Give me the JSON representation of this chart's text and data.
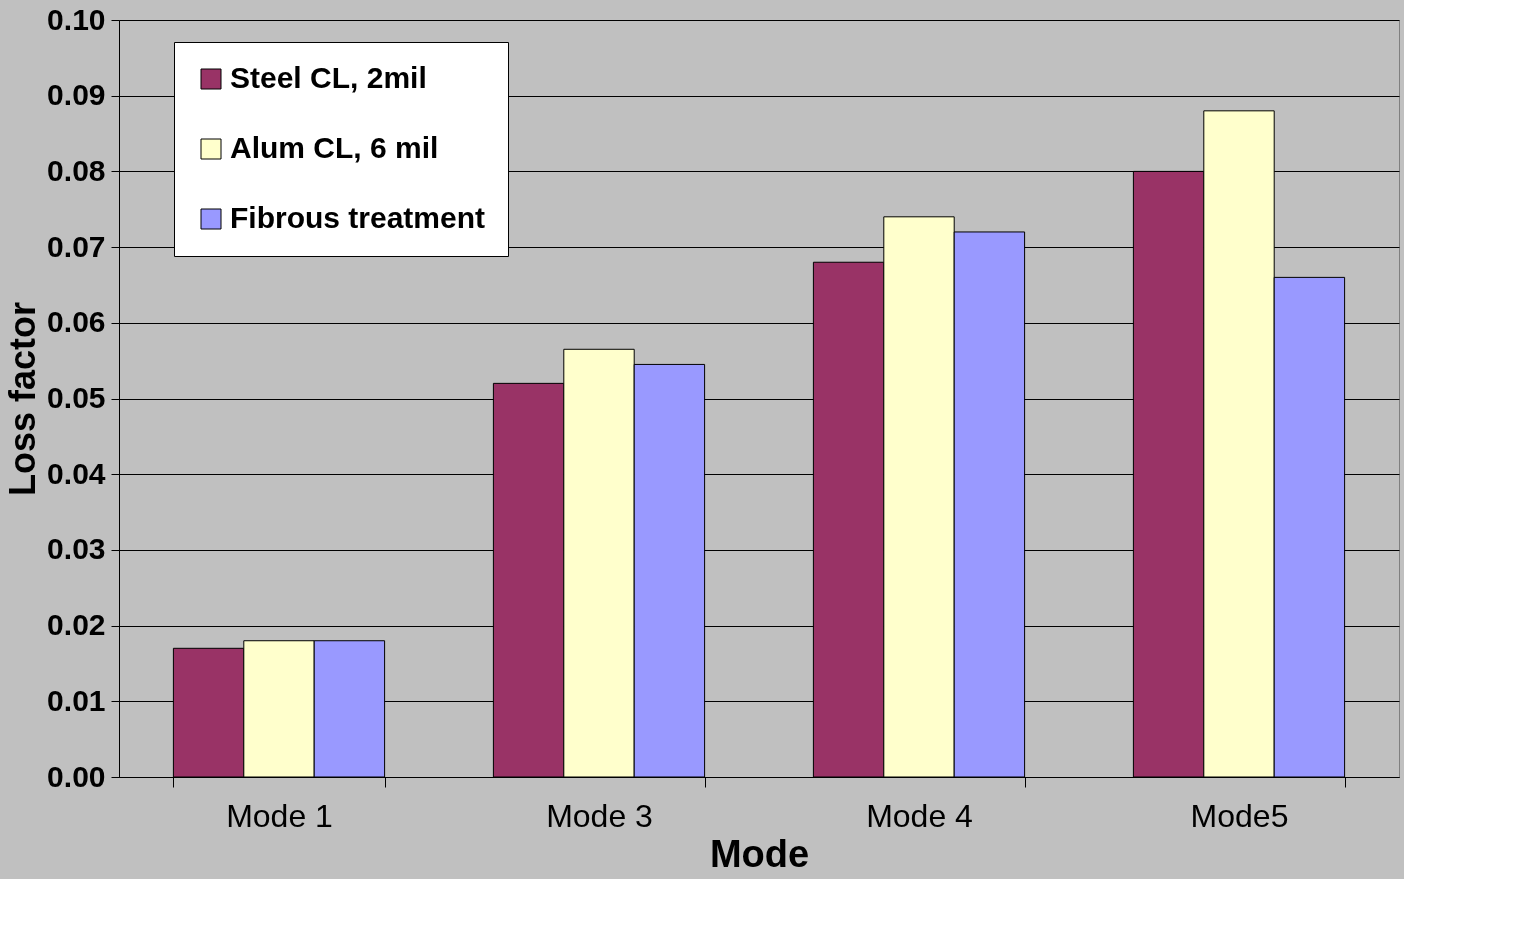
{
  "chart_data": {
    "type": "bar",
    "xlabel": "Mode",
    "ylabel": "Loss factor",
    "categories": [
      "Mode 1",
      "Mode 3",
      "Mode 4",
      "Mode5"
    ],
    "series": [
      {
        "name": "Steel CL, 2mil",
        "color": "#993366",
        "values": [
          0.017,
          0.052,
          0.068,
          0.08
        ]
      },
      {
        "name": "Alum CL, 6 mil",
        "color": "#ffffcc",
        "values": [
          0.018,
          0.0565,
          0.074,
          0.088
        ]
      },
      {
        "name": "Fibrous treatment",
        "color": "#9999ff",
        "values": [
          0.018,
          0.0545,
          0.072,
          0.066
        ]
      }
    ],
    "ylim": [
      0,
      0.1
    ],
    "yticks": [
      {
        "value": 0,
        "label": "0.00"
      },
      {
        "value": 0.01,
        "label": "0.01"
      },
      {
        "value": 0.02,
        "label": "0.02"
      },
      {
        "value": 0.03,
        "label": "0.03"
      },
      {
        "value": 0.04,
        "label": "0.04"
      },
      {
        "value": 0.05,
        "label": "0.05"
      },
      {
        "value": 0.06,
        "label": "0.06"
      },
      {
        "value": 0.07,
        "label": "0.07"
      },
      {
        "value": 0.08,
        "label": "0.08"
      },
      {
        "value": 0.09,
        "label": "0.09"
      },
      {
        "value": 0.1,
        "label": "0.10"
      }
    ],
    "grid": "y",
    "legend": "top left"
  }
}
